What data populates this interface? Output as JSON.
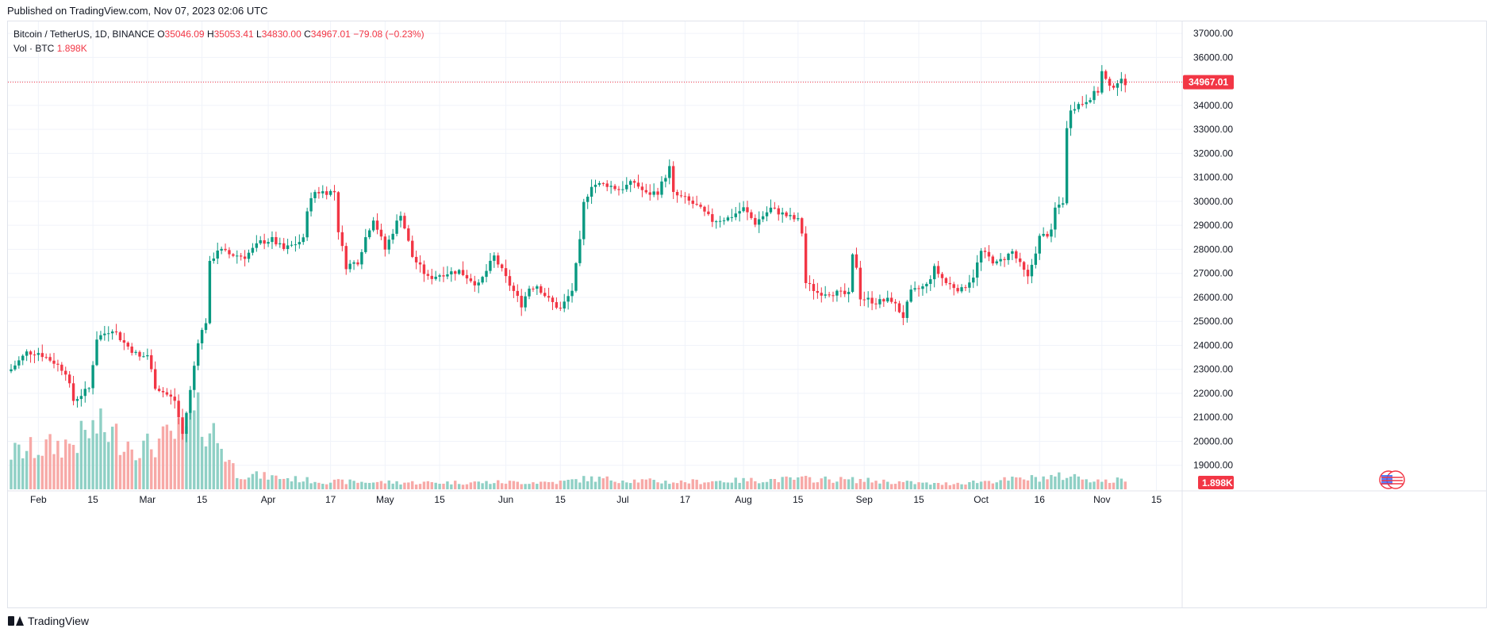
{
  "header": {
    "published": "Published on TradingView.com, Nov 07, 2023 02:06 UTC"
  },
  "legend": {
    "symbol": "Bitcoin / TetherUS, 1D, BINANCE",
    "open_label": "O",
    "open": "35046.09",
    "high_label": "H",
    "high": "35053.41",
    "low_label": "L",
    "low": "34830.00",
    "close_label": "C",
    "close": "34967.01",
    "change": "−79.08 (−0.23%)",
    "vol_label": "Vol · BTC",
    "vol": "1.898K"
  },
  "footer": {
    "brand": "TradingView"
  },
  "colors": {
    "up": "#089981",
    "down": "#f23645",
    "up_volume": "#8fd0c5",
    "down_volume": "#f7a9a7",
    "grid": "#f0f3fa"
  },
  "chart_data": {
    "type": "candlestick",
    "title": "Bitcoin / TetherUS, 1D, BINANCE",
    "start": "2023-01-25",
    "end": "2023-11-07",
    "x_ticks": [
      "Feb",
      "15",
      "Mar",
      "15",
      "Apr",
      "17",
      "May",
      "15",
      "Jun",
      "15",
      "Jul",
      "17",
      "Aug",
      "15",
      "Sep",
      "15",
      "Oct",
      "16",
      "Nov",
      "15"
    ],
    "y_ticks": [
      "19000.00",
      "20000.00",
      "21000.00",
      "22000.00",
      "23000.00",
      "24000.00",
      "25000.00",
      "26000.00",
      "27000.00",
      "28000.00",
      "29000.00",
      "30000.00",
      "31000.00",
      "32000.00",
      "33000.00",
      "34000.00",
      "35000.00",
      "36000.00",
      "37000.00"
    ],
    "ylim": [
      18000,
      37500
    ],
    "last_price": "34967.01",
    "last_volume": "1.898K",
    "close_anchors": [
      [
        "2023-01-25",
        23000
      ],
      [
        "2023-01-29",
        23700
      ],
      [
        "2023-02-01",
        23700
      ],
      [
        "2023-02-05",
        23300
      ],
      [
        "2023-02-08",
        22900
      ],
      [
        "2023-02-10",
        21700
      ],
      [
        "2023-02-14",
        22200
      ],
      [
        "2023-02-16",
        24300
      ],
      [
        "2023-02-20",
        24700
      ],
      [
        "2023-02-23",
        24100
      ],
      [
        "2023-02-27",
        23500
      ],
      [
        "2023-03-01",
        23600
      ],
      [
        "2023-03-03",
        22300
      ],
      [
        "2023-03-08",
        21700
      ],
      [
        "2023-03-10",
        20300
      ],
      [
        "2023-03-12",
        22100
      ],
      [
        "2023-03-14",
        24200
      ],
      [
        "2023-03-16",
        25000
      ],
      [
        "2023-03-17",
        27400
      ],
      [
        "2023-03-19",
        28000
      ],
      [
        "2023-03-22",
        27800
      ],
      [
        "2023-03-26",
        27700
      ],
      [
        "2023-03-30",
        28300
      ],
      [
        "2023-04-02",
        28400
      ],
      [
        "2023-04-05",
        28000
      ],
      [
        "2023-04-10",
        28400
      ],
      [
        "2023-04-11",
        29700
      ],
      [
        "2023-04-13",
        30400
      ],
      [
        "2023-04-18",
        30400
      ],
      [
        "2023-04-19",
        28800
      ],
      [
        "2023-04-21",
        27300
      ],
      [
        "2023-04-24",
        27500
      ],
      [
        "2023-04-26",
        28500
      ],
      [
        "2023-04-28",
        29300
      ],
      [
        "2023-05-01",
        28000
      ],
      [
        "2023-05-05",
        29500
      ],
      [
        "2023-05-08",
        27700
      ],
      [
        "2023-05-12",
        26800
      ],
      [
        "2023-05-16",
        27000
      ],
      [
        "2023-05-20",
        27100
      ],
      [
        "2023-05-25",
        26500
      ],
      [
        "2023-05-29",
        27700
      ],
      [
        "2023-06-01",
        26800
      ],
      [
        "2023-06-05",
        25700
      ],
      [
        "2023-06-07",
        26400
      ],
      [
        "2023-06-09",
        26500
      ],
      [
        "2023-06-12",
        25900
      ],
      [
        "2023-06-15",
        25500
      ],
      [
        "2023-06-18",
        26300
      ],
      [
        "2023-06-20",
        28300
      ],
      [
        "2023-06-21",
        29900
      ],
      [
        "2023-06-23",
        30700
      ],
      [
        "2023-06-27",
        30700
      ],
      [
        "2023-06-30",
        30500
      ],
      [
        "2023-07-04",
        30800
      ],
      [
        "2023-07-07",
        30300
      ],
      [
        "2023-07-10",
        30400
      ],
      [
        "2023-07-13",
        31400
      ],
      [
        "2023-07-14",
        30300
      ],
      [
        "2023-07-17",
        30100
      ],
      [
        "2023-07-20",
        29800
      ],
      [
        "2023-07-24",
        29200
      ],
      [
        "2023-07-28",
        29300
      ],
      [
        "2023-08-01",
        29700
      ],
      [
        "2023-08-04",
        29100
      ],
      [
        "2023-08-08",
        29700
      ],
      [
        "2023-08-12",
        29400
      ],
      [
        "2023-08-15",
        29200
      ],
      [
        "2023-08-16",
        28700
      ],
      [
        "2023-08-17",
        26600
      ],
      [
        "2023-08-20",
        26200
      ],
      [
        "2023-08-24",
        26200
      ],
      [
        "2023-08-28",
        26100
      ],
      [
        "2023-08-29",
        27700
      ],
      [
        "2023-08-30",
        27300
      ],
      [
        "2023-08-31",
        26000
      ],
      [
        "2023-09-04",
        25800
      ],
      [
        "2023-09-08",
        25900
      ],
      [
        "2023-09-11",
        25200
      ],
      [
        "2023-09-13",
        26200
      ],
      [
        "2023-09-17",
        26500
      ],
      [
        "2023-09-19",
        27200
      ],
      [
        "2023-09-22",
        26600
      ],
      [
        "2023-09-26",
        26300
      ],
      [
        "2023-09-29",
        26900
      ],
      [
        "2023-10-01",
        27900
      ],
      [
        "2023-10-05",
        27400
      ],
      [
        "2023-10-09",
        27900
      ],
      [
        "2023-10-13",
        26800
      ],
      [
        "2023-10-16",
        28500
      ],
      [
        "2023-10-19",
        28700
      ],
      [
        "2023-10-20",
        29700
      ],
      [
        "2023-10-22",
        30000
      ],
      [
        "2023-10-23",
        33000
      ],
      [
        "2023-10-24",
        33900
      ],
      [
        "2023-10-27",
        34100
      ],
      [
        "2023-10-31",
        34600
      ],
      [
        "2023-11-01",
        35400
      ],
      [
        "2023-11-03",
        34700
      ],
      [
        "2023-11-05",
        35000
      ],
      [
        "2023-11-07",
        34967
      ]
    ],
    "volume_levels_k": [
      [
        "2023-01-25",
        7
      ],
      [
        "2023-02-10",
        9
      ],
      [
        "2023-02-16",
        12
      ],
      [
        "2023-02-28",
        8
      ],
      [
        "2023-03-10",
        11
      ],
      [
        "2023-03-14",
        14
      ],
      [
        "2023-03-18",
        11
      ],
      [
        "2023-03-24",
        3
      ],
      [
        "2023-04-15",
        1.5
      ],
      [
        "2023-05-10",
        1.3
      ],
      [
        "2023-06-15",
        1.4
      ],
      [
        "2023-06-22",
        2.1
      ],
      [
        "2023-07-14",
        1.4
      ],
      [
        "2023-08-17",
        2.0
      ],
      [
        "2023-08-30",
        1.8
      ],
      [
        "2023-09-20",
        1.0
      ],
      [
        "2023-10-24",
        2.6
      ],
      [
        "2023-11-02",
        1.5
      ],
      [
        "2023-11-07",
        1.9
      ]
    ]
  }
}
